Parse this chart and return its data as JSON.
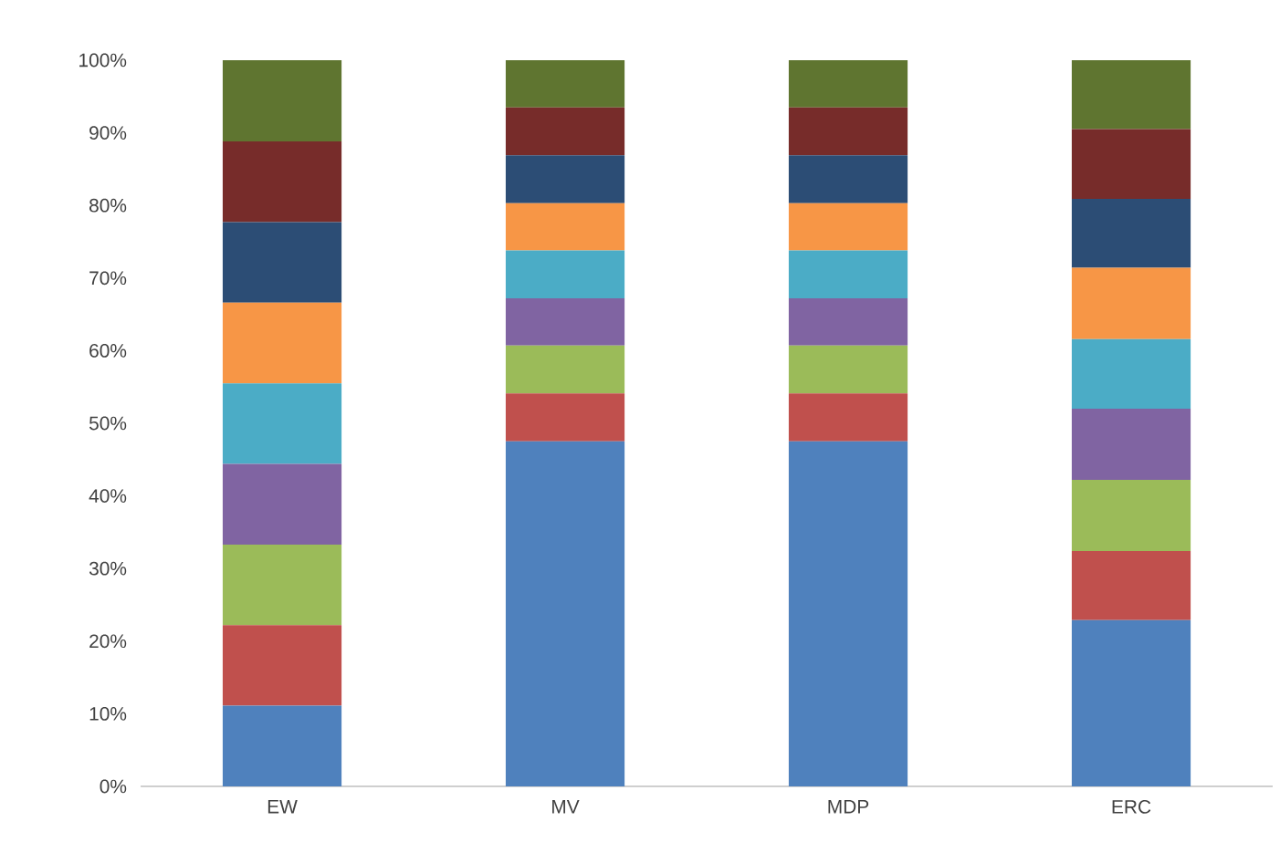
{
  "chart_data": {
    "type": "bar",
    "stacked": true,
    "categories": [
      "EW",
      "MV",
      "MDP",
      "ERC"
    ],
    "ylim": [
      0,
      100
    ],
    "yticks": [
      {
        "value": 0,
        "label": "0%"
      },
      {
        "value": 10,
        "label": "10%"
      },
      {
        "value": 20,
        "label": "20%"
      },
      {
        "value": 30,
        "label": "30%"
      },
      {
        "value": 40,
        "label": "40%"
      },
      {
        "value": 50,
        "label": "50%"
      },
      {
        "value": 60,
        "label": "60%"
      },
      {
        "value": 70,
        "label": "70%"
      },
      {
        "value": 80,
        "label": "80%"
      },
      {
        "value": 90,
        "label": "90%"
      },
      {
        "value": 100,
        "label": "100%"
      }
    ],
    "series": [
      {
        "color": "#4f81bd",
        "values": [
          11.1,
          47.5,
          47.5,
          22.9
        ]
      },
      {
        "color": "#c0504d",
        "values": [
          11.1,
          6.6,
          6.6,
          9.5
        ]
      },
      {
        "color": "#9bbb59",
        "values": [
          11.1,
          6.6,
          6.6,
          9.8
        ]
      },
      {
        "color": "#8064a2",
        "values": [
          11.1,
          6.5,
          6.5,
          9.8
        ]
      },
      {
        "color": "#4bacc6",
        "values": [
          11.1,
          6.6,
          6.6,
          9.6
        ]
      },
      {
        "color": "#f79646",
        "values": [
          11.1,
          6.5,
          6.5,
          9.8
        ]
      },
      {
        "color": "#2c4d75",
        "values": [
          11.1,
          6.6,
          6.6,
          9.5
        ]
      },
      {
        "color": "#772c2a",
        "values": [
          11.1,
          6.6,
          6.6,
          9.6
        ]
      },
      {
        "color": "#5f7530",
        "values": [
          11.2,
          6.5,
          6.5,
          9.5
        ]
      }
    ]
  }
}
